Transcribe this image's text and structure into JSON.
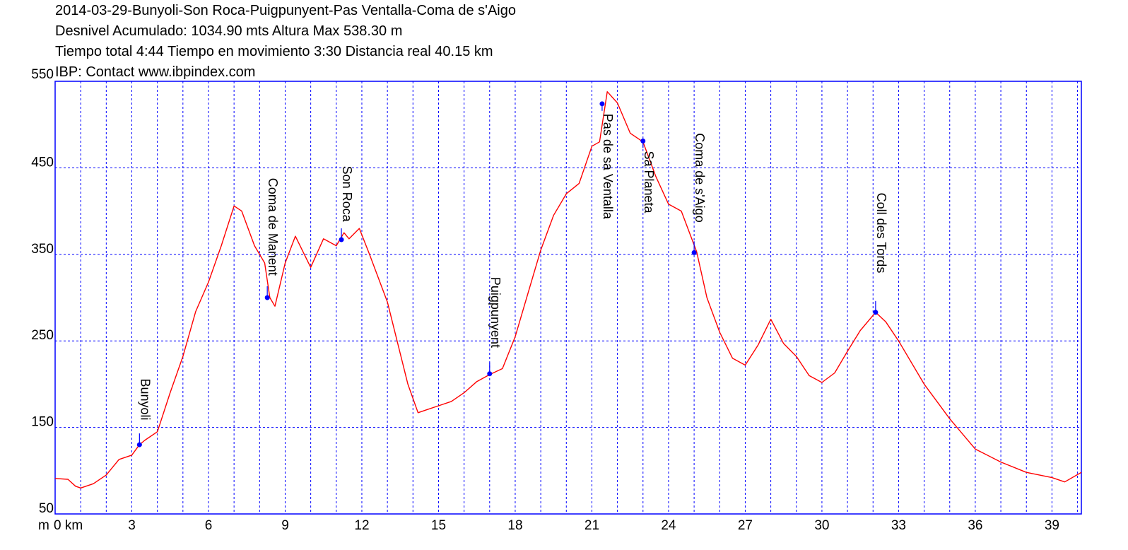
{
  "header": {
    "line1": "2014-03-29-Bunyoli-Son Roca-Puigpunyent-Pas Ventalla-Coma de s'Aigo",
    "line2": "Desnivel Acumulado: 1034.90 mts  Altura Max 538.30 m",
    "line3": "Tiempo total 4:44 Tiempo en movimiento 3:30 Distancia real 40.15 km",
    "line4": "IBP:  Contact www.ibpindex.com"
  },
  "chart_data": {
    "type": "line",
    "title": "2014-03-29-Bunyoli-Son Roca-Puigpunyent-Pas Ventalla-Coma de s'Aigo",
    "xlabel": "km",
    "ylabel": "m",
    "xlim": [
      0,
      40.15
    ],
    "ylim": [
      50,
      550
    ],
    "x_ticks": [
      0,
      3,
      6,
      9,
      12,
      15,
      18,
      21,
      24,
      27,
      30,
      33,
      36,
      39
    ],
    "x_tick_labels": [
      "0 km",
      "3",
      "6",
      "9",
      "12",
      "15",
      "18",
      "21",
      "24",
      "27",
      "30",
      "33",
      "36",
      "39"
    ],
    "y_ticks": [
      50,
      150,
      250,
      350,
      450,
      550
    ],
    "y_unit_label": "m",
    "grid": true,
    "colors": {
      "profile": "#ff0000",
      "grid": "#0000ff",
      "marker": "#0000ff",
      "axis": "#0000ff"
    },
    "series": [
      {
        "x": [
          0,
          0.5,
          0.8,
          1,
          1.5,
          2,
          2.5,
          3,
          3.3,
          3.5,
          4,
          4.5,
          5,
          5.5,
          6,
          6.5,
          7,
          7.3,
          7.8,
          8.2,
          8.4,
          8.6,
          9,
          9.4,
          10,
          10.5,
          11,
          11.3,
          11.5,
          11.9,
          12.3,
          13,
          13.8,
          14.2,
          14.5,
          15,
          15.5,
          16,
          16.5,
          17,
          17.5,
          18,
          18.5,
          19,
          19.5,
          20,
          20.5,
          21,
          21.3,
          21.6,
          22,
          22.5,
          23,
          23.5,
          24,
          24.5,
          25.1,
          25.5,
          26,
          26.5,
          27,
          27.5,
          28,
          28.5,
          29,
          29.5,
          30,
          30.5,
          31,
          31.5,
          32.1,
          32.5,
          33,
          34,
          35,
          36,
          37,
          38,
          39,
          39.5,
          40.15
        ],
        "y": [
          91,
          90,
          82,
          80,
          85,
          95,
          113,
          118,
          130,
          135,
          145,
          190,
          232,
          284,
          318,
          360,
          406,
          400,
          360,
          340,
          300,
          290,
          340,
          371,
          335,
          368,
          360,
          375,
          368,
          380,
          350,
          295,
          200,
          167,
          170,
          175,
          180,
          190,
          203,
          211,
          218,
          255,
          305,
          355,
          395,
          420,
          432,
          475,
          480,
          538,
          525,
          490,
          480,
          440,
          408,
          400,
          353,
          300,
          260,
          230,
          222,
          245,
          275,
          247,
          232,
          210,
          202,
          213,
          238,
          262,
          283,
          272,
          250,
          200,
          160,
          125,
          110,
          98,
          92,
          87,
          98
        ]
      }
    ],
    "waypoints": [
      {
        "name": "Bunyoli",
        "x": 3.3,
        "y": 130
      },
      {
        "name": "Coma de Manent",
        "x": 8.3,
        "y": 300
      },
      {
        "name": "Son Roca",
        "x": 11.2,
        "y": 367
      },
      {
        "name": "Puigpunyent",
        "x": 17.0,
        "y": 212
      },
      {
        "name": "Pas de sa Ventalla",
        "x": 21.4,
        "y": 524
      },
      {
        "name": "Sa Planeta",
        "x": 23.0,
        "y": 481
      },
      {
        "name": "Coma de s'Aigo",
        "x": 25.0,
        "y": 352
      },
      {
        "name": "Coll des Tords",
        "x": 32.1,
        "y": 283
      }
    ]
  }
}
